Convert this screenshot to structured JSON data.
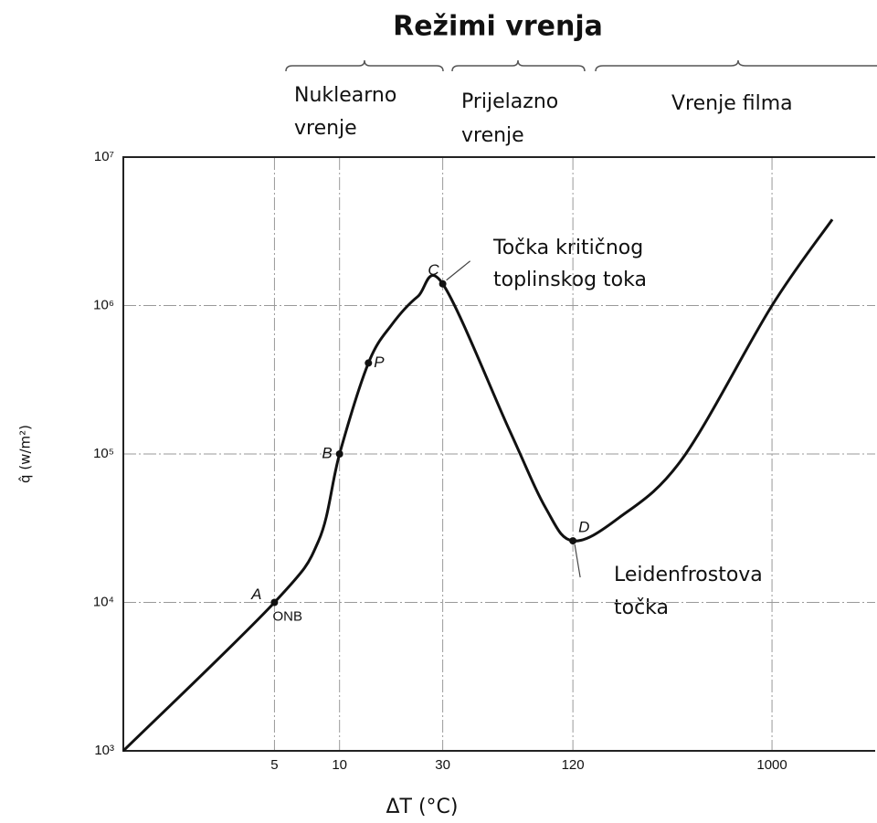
{
  "chart_data": {
    "type": "line",
    "title": "Režimi vrenja",
    "x_label": "ΔT (°C)",
    "y_label": "q̂ (w/m²)",
    "xscale": "log",
    "yscale": "log",
    "xlim": [
      1,
      3000
    ],
    "ylim": [
      1000,
      10000000
    ],
    "xticks": [
      5,
      10,
      30,
      120,
      1000
    ],
    "yticks": [
      {
        "value": 1000,
        "label": "10³"
      },
      {
        "value": 10000,
        "label": "10⁴"
      },
      {
        "value": 100000,
        "label": "10⁵"
      },
      {
        "value": 1000000,
        "label": "10⁶"
      },
      {
        "value": 10000000,
        "label": "10⁷"
      }
    ],
    "grid": true,
    "regions": [
      [
        "Nuklearno",
        "vrenje"
      ],
      [
        "Prijelazno",
        "vrenje"
      ],
      [
        "Vrenje filma"
      ]
    ],
    "series": [
      {
        "color": "#111111",
        "x": [
          1,
          5,
          8,
          10,
          13.6,
          17.4,
          23,
          30,
          61,
          90,
          120,
          195,
          385,
          1000,
          1900
        ],
        "values": [
          1000,
          10000,
          26000,
          100000,
          410000,
          740000,
          1150000,
          1400000,
          145000,
          43000,
          26000,
          37000,
          93000,
          1000000,
          3800000
        ]
      }
    ],
    "points": [
      {
        "label": "A",
        "x": 5,
        "y": 10000
      },
      {
        "label": "B",
        "x": 10,
        "y": 100000
      },
      {
        "label": "P",
        "x": 13.6,
        "y": 410000
      },
      {
        "label": "C",
        "x": 30,
        "y": 1400000
      },
      {
        "label": "D",
        "x": 120,
        "y": 26000
      }
    ],
    "annotations": {
      "onb": "ONB",
      "critical": [
        "Točka kritičnog",
        "toplinskog toka"
      ],
      "leidenfrost": [
        "Leidenfrostova",
        "točka"
      ]
    }
  }
}
